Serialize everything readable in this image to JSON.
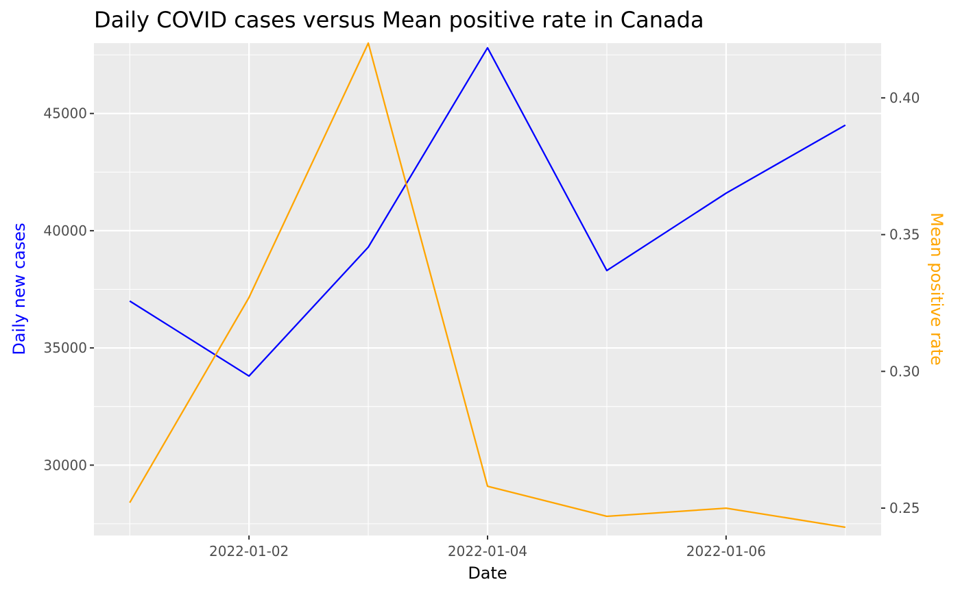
{
  "chart_data": {
    "type": "line",
    "title": "Daily COVID cases versus Mean positive rate in Canada",
    "xlabel": "Date",
    "ylabel_left": "Daily new cases",
    "ylabel_right": "Mean positive rate",
    "x": [
      "2022-01-01",
      "2022-01-02",
      "2022-01-03",
      "2022-01-04",
      "2022-01-05",
      "2022-01-06",
      "2022-01-07"
    ],
    "x_ticks": [
      "2022-01-02",
      "2022-01-04",
      "2022-01-06"
    ],
    "xlim": [
      "2022-01-01",
      "2022-01-07"
    ],
    "ylim_left": [
      27000,
      48000
    ],
    "yticks_left": [
      30000,
      35000,
      40000,
      45000
    ],
    "ylim_right": [
      0.24,
      0.42
    ],
    "yticks_right": [
      "0.25",
      "0.30",
      "0.35",
      "0.40"
    ],
    "grid": true,
    "panel_background": "#ebebeb",
    "series": [
      {
        "name": "Daily new cases",
        "axis": "left",
        "color": "#0000ff",
        "values": [
          37000,
          33800,
          39300,
          47800,
          38300,
          41600,
          44500
        ]
      },
      {
        "name": "Mean positive rate",
        "axis": "right",
        "color": "#ffa500",
        "values": [
          0.252,
          0.327,
          0.42,
          0.258,
          0.247,
          0.25,
          0.243
        ]
      }
    ]
  }
}
